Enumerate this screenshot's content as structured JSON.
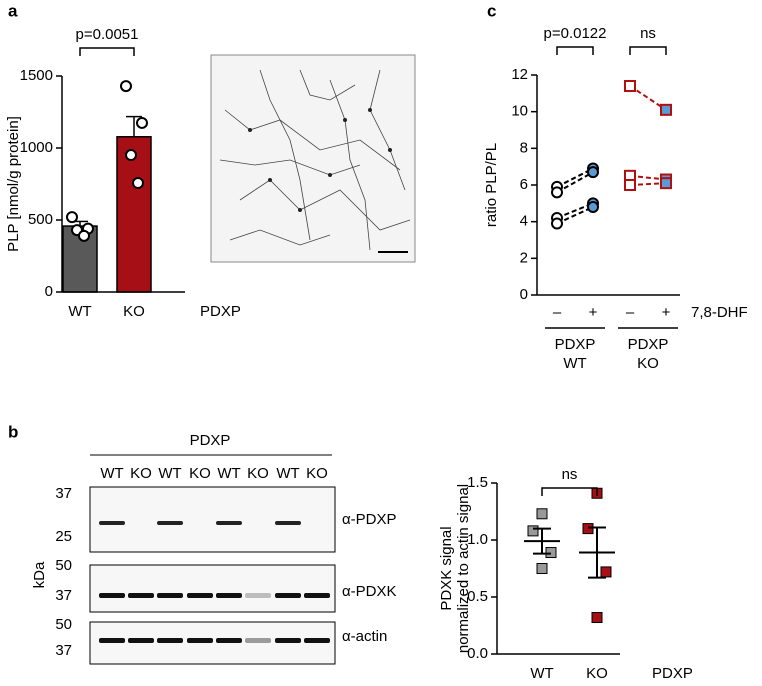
{
  "panels": [
    "a",
    "b",
    "c"
  ],
  "chart_data": [
    {
      "type": "bar",
      "ylabel": "PLP [nmol/g protein]",
      "categories": [
        "WT",
        "KO"
      ],
      "category_colors": [
        "#000000",
        "#b01010"
      ],
      "group_label": "PDXP",
      "values": [
        458,
        1078
      ],
      "errors": [
        32,
        140
      ],
      "colors": [
        "#595959",
        "#a50f15"
      ],
      "points": [
        [
          520,
          440,
          430,
          390
        ],
        [
          1430,
          1174,
          951,
          757
        ]
      ],
      "ylim": [
        0,
        1500
      ],
      "yticks": [
        0,
        500,
        1000,
        1500
      ],
      "annotation": "p=0.0051"
    },
    {
      "type": "line",
      "ylabel": "ratio PLP/PL",
      "categories": [
        "–",
        "+",
        "–",
        "+"
      ],
      "x_label": "7,8-DHF",
      "point_fills": [
        "#ffffff",
        "#5b9bd5",
        "#ffffff",
        "#5b9bd5"
      ],
      "groups": [
        {
          "lines": [
            "PDXP",
            "WT"
          ],
          "color": "#000000"
        },
        {
          "lines": [
            "PDXP",
            "KO"
          ],
          "color": "#b01010"
        }
      ],
      "series": [
        {
          "color": "#000000",
          "marker": "circle",
          "values": [
            5.9,
            6.9,
            null,
            null
          ]
        },
        {
          "color": "#000000",
          "marker": "circle",
          "values": [
            5.6,
            6.7,
            null,
            null
          ]
        },
        {
          "color": "#000000",
          "marker": "circle",
          "values": [
            4.2,
            5.0,
            null,
            null
          ]
        },
        {
          "color": "#000000",
          "marker": "circle",
          "values": [
            3.9,
            4.8,
            null,
            null
          ]
        },
        {
          "color": "#b01010",
          "marker": "square",
          "values": [
            null,
            null,
            11.4,
            10.1
          ]
        },
        {
          "color": "#b01010",
          "marker": "square",
          "values": [
            null,
            null,
            6.5,
            6.3
          ]
        },
        {
          "color": "#b01010",
          "marker": "square",
          "values": [
            null,
            null,
            6.0,
            6.1
          ]
        }
      ],
      "annotations": [
        {
          "text": "p=0.0122",
          "between": [
            0,
            1
          ]
        },
        {
          "text": "ns",
          "between": [
            2,
            3
          ]
        }
      ],
      "ylim": [
        0,
        12
      ],
      "yticks": [
        0,
        2,
        4,
        6,
        8,
        10,
        12
      ]
    },
    {
      "type": "dot",
      "ylabel": [
        "PDXK signal",
        "normalized to actin signal"
      ],
      "categories": [
        "WT",
        "KO"
      ],
      "category_colors": [
        "#000000",
        "#b01010"
      ],
      "group_label": "PDXP",
      "points": [
        [
          1.23,
          1.08,
          0.89,
          0.75
        ],
        [
          1.41,
          1.1,
          0.72,
          0.32
        ]
      ],
      "means": [
        0.99,
        0.89
      ],
      "errors": [
        0.11,
        0.22
      ],
      "colors": [
        "#999999",
        "#a50f15"
      ],
      "annotation": "ns",
      "ylim": [
        0,
        1.5
      ],
      "yticks": [
        {
          "value": 0,
          "label": "0.0"
        },
        0.5,
        {
          "value": 1,
          "label": "1.0"
        },
        1.5
      ]
    }
  ],
  "blot": {
    "header": "PDXP",
    "lanes": [
      "WT",
      "KO",
      "WT",
      "KO",
      "WT",
      "KO",
      "WT",
      "KO"
    ],
    "lane_colors": [
      "#000000",
      "#b01010"
    ],
    "unit": "kDa",
    "markers": [
      "37",
      "25",
      "50",
      "37",
      "50",
      "37"
    ],
    "antibodies": [
      "α-PDXP",
      "α-PDXK",
      "α-actin"
    ]
  }
}
